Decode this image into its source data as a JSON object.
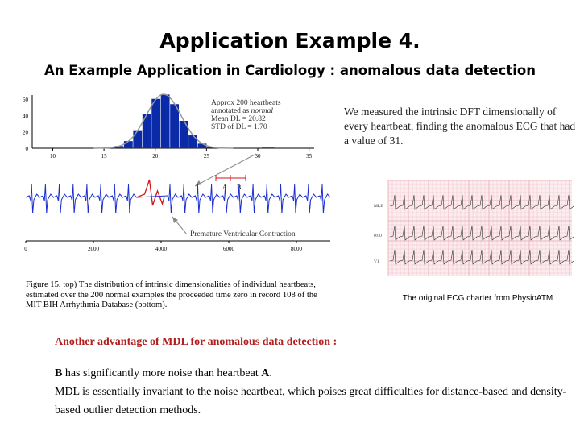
{
  "slide": {
    "title": "Application Example 4.",
    "subtitle": "An Example Application in Cardiology : anomalous data detection",
    "description": "We measured the intrinsic DFT dimensionally of every heartbeat, finding the anomalous ECG that had a value of 31.",
    "figure_caption": "Figure 15. top) The distribution of intrinsic dimensionalities of individual heartbeats, estimated over the 200 normal examples the proceeded time zero in record 108 of the MIT BIH Arrhythmia Database (bottom).",
    "ecg_caption": "The original ECG charter from PhysioATM",
    "advantage_heading": "Another advantage of MDL for anomalous data detection :",
    "advantage_line1_prefix": "B",
    "advantage_line1_mid": " has significantly more noise than heartbeat ",
    "advantage_line1_suffix": "A",
    "advantage_line1_end": ".",
    "advantage_line2": "MDL is essentially invariant to the noise heartbeat, which poises great difficulties for distance-based and density-based outlier detection methods."
  },
  "histogram": {
    "legend_lines": [
      "Approx 200 heartbeats",
      "annotated as normal",
      "Mean DL = 20.82",
      "STD of DL = 1.70"
    ],
    "bar_color": "#0a2aa8",
    "fit_color": "#999999",
    "outlier_color": "#d41414",
    "outlier_value": 31,
    "x_ticks": [
      "10",
      "15",
      "20",
      "25",
      "30",
      "35"
    ],
    "y_ticks": [
      "60",
      "40",
      "20",
      "0"
    ]
  },
  "ecg_trace": {
    "label_a": "A",
    "label_b": "B",
    "annotation": "Premature Ventricular Contraction",
    "x_ticks": [
      "0",
      "2000",
      "4000",
      "6000",
      "8000"
    ],
    "trace_color": "#1a2fd0",
    "pvc_color": "#d41414"
  },
  "ecg_chart": {
    "lead_labels": [
      "MLII",
      "0:00",
      "V1"
    ],
    "grid_color": "#e9a9b4"
  }
}
